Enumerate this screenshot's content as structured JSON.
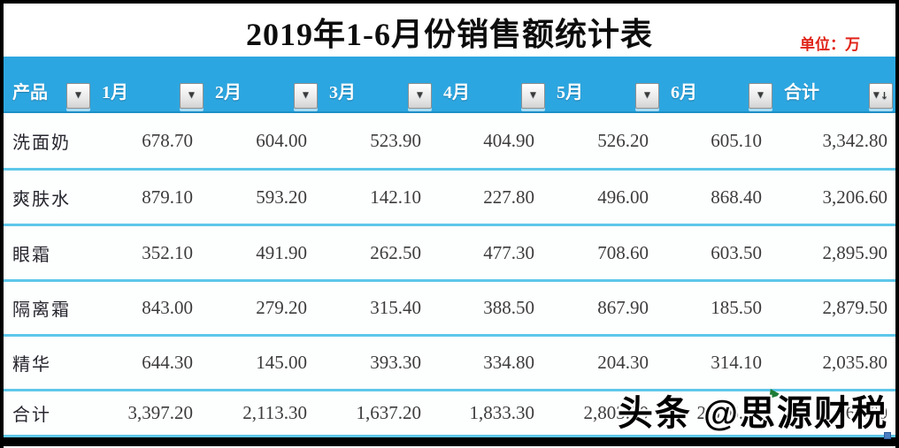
{
  "title": "2019年1-6月份销售额统计表",
  "unit_label": "单位：万",
  "watermark": "头条 @思源财税",
  "icons": {
    "filter_triangle": "▼",
    "sort_triangle": "▼",
    "sort_arrow": "↓"
  },
  "colors": {
    "header_blue": "#2ca6e0",
    "row_divider_blue": "#5ec7ea",
    "unit_red": "#e02318",
    "frame_black": "#000000",
    "flag_green": "#1e7b34"
  },
  "table": {
    "columns": [
      "产品",
      "1月",
      "2月",
      "3月",
      "4月",
      "5月",
      "6月",
      "合计"
    ],
    "rows": [
      {
        "product": "洗面奶",
        "values": [
          "678.70",
          "604.00",
          "523.90",
          "404.90",
          "526.20",
          "605.10",
          "3,342.80"
        ]
      },
      {
        "product": "爽肤水",
        "values": [
          "879.10",
          "593.20",
          "142.10",
          "227.80",
          "496.00",
          "868.40",
          "3,206.60"
        ]
      },
      {
        "product": "眼霜",
        "values": [
          "352.10",
          "491.90",
          "262.50",
          "477.30",
          "708.60",
          "603.50",
          "2,895.90"
        ]
      },
      {
        "product": "隔离霜",
        "values": [
          "843.00",
          "279.20",
          "315.40",
          "388.50",
          "867.90",
          "185.50",
          "2,879.50"
        ]
      },
      {
        "product": "精华",
        "values": [
          "644.30",
          "145.00",
          "393.30",
          "334.80",
          "204.30",
          "314.10",
          "2,035.80"
        ]
      },
      {
        "product": "合计",
        "values": [
          "3,397.20",
          "2,113.30",
          "1,637.20",
          "1,833.30",
          "2,803.00",
          "2,576.60",
          "14,360.60"
        ]
      }
    ]
  }
}
